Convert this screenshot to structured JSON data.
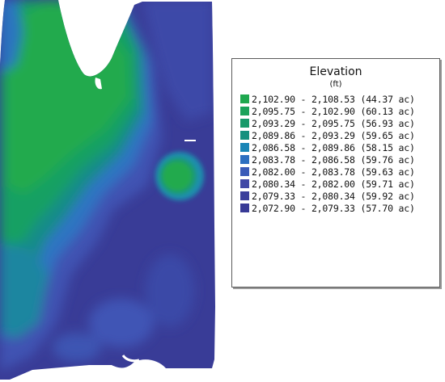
{
  "legend": {
    "title": "Elevation",
    "unit": "(ft)",
    "items": [
      {
        "label": "2,102.90 - 2,108.53 (44.37 ac)",
        "color": "#1fa84f"
      },
      {
        "label": "2,095.75 - 2,102.90 (60.13 ac)",
        "color": "#1aa25a"
      },
      {
        "label": "2,093.29 - 2,095.75 (56.93 ac)",
        "color": "#179a6a"
      },
      {
        "label": "2,089.86 - 2,093.29 (59.65 ac)",
        "color": "#15907e"
      },
      {
        "label": "2,086.58 - 2,089.86 (58.15 ac)",
        "color": "#1985b6"
      },
      {
        "label": "2,083.78 - 2,086.58 (59.76 ac)",
        "color": "#2d6fc0"
      },
      {
        "label": "2,082.00 - 2,083.78 (59.63 ac)",
        "color": "#3a5bb8"
      },
      {
        "label": "2,080.34 - 2,082.00 (59.71 ac)",
        "color": "#4048a6"
      },
      {
        "label": "2,079.33 - 2,080.34 (59.92 ac)",
        "color": "#3a3f9c"
      },
      {
        "label": "2,072.90 - 2,079.33 (57.70 ac)",
        "color": "#383a96"
      }
    ]
  }
}
